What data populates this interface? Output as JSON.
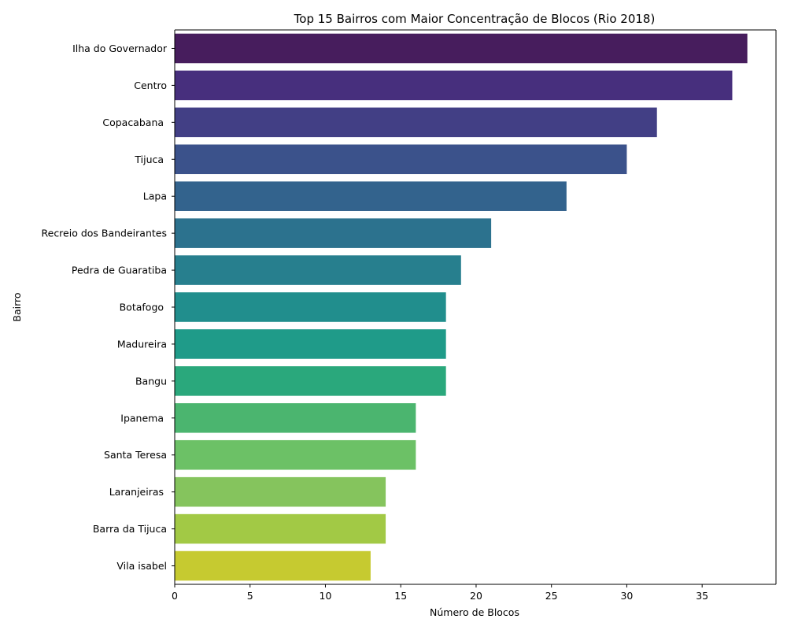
{
  "chart_data": {
    "type": "bar",
    "orientation": "horizontal",
    "title": "Top 15 Bairros com Maior Concentração de Blocos (Rio 2018)",
    "xlabel": "Número de Blocos",
    "ylabel": "Bairro",
    "xlim": [
      0,
      40
    ],
    "xticks": [
      0,
      5,
      10,
      15,
      20,
      25,
      30,
      35
    ],
    "grid": false,
    "categories": [
      "Ilha do Governador",
      "Centro",
      "Copacabana ",
      "Tijuca ",
      "Lapa",
      "Recreio dos Bandeirantes",
      "Pedra de Guaratiba",
      "Botafogo ",
      "Madureira",
      "Bangu",
      "Ipanema ",
      "Santa Teresa",
      "Laranjeiras ",
      "Barra da Tijuca",
      "Vila isabel"
    ],
    "values": [
      38,
      37,
      32,
      30,
      26,
      21,
      19,
      18,
      18,
      18,
      16,
      16,
      14,
      14,
      13
    ],
    "colors": [
      "#471d5d",
      "#472f7d",
      "#423f85",
      "#3b528b",
      "#33638d",
      "#2c728e",
      "#277f8e",
      "#218e8d",
      "#1f9b89",
      "#2aa87c",
      "#4bb56f",
      "#6cc166",
      "#85c45d",
      "#a2c945",
      "#c6ca30"
    ]
  }
}
